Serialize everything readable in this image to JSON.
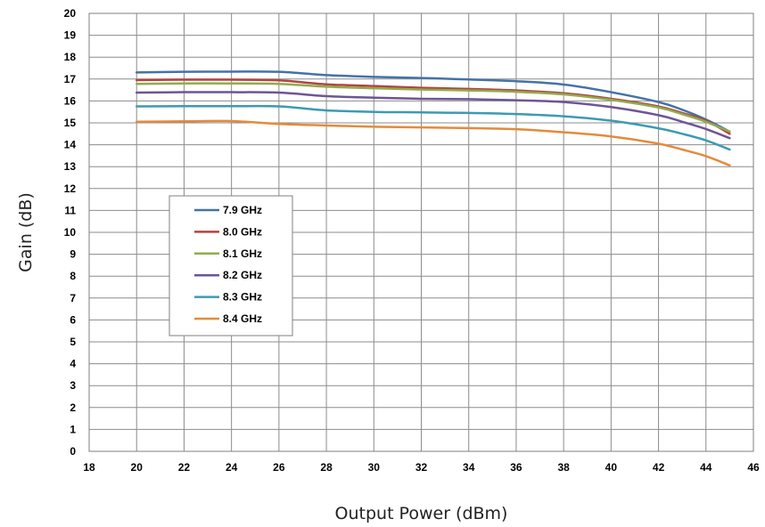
{
  "chart_data": {
    "type": "line",
    "title": "",
    "xlabel": "Output Power (dBm)",
    "ylabel": "Gain (dB)",
    "xlim": [
      18,
      46
    ],
    "ylim": [
      0,
      20
    ],
    "x_ticks": [
      18,
      20,
      22,
      24,
      26,
      28,
      30,
      32,
      34,
      36,
      38,
      40,
      42,
      44,
      46
    ],
    "y_ticks": [
      0,
      1,
      2,
      3,
      4,
      5,
      6,
      7,
      8,
      9,
      10,
      11,
      12,
      13,
      14,
      15,
      16,
      17,
      18,
      19,
      20
    ],
    "grid": true,
    "legend_position": "left-center",
    "x": [
      20,
      22,
      24,
      26,
      28,
      30,
      32,
      34,
      36,
      38,
      40,
      42,
      43,
      44,
      45
    ],
    "series": [
      {
        "name": "7.9 GHz",
        "color": "#4472a8",
        "values": [
          17.3,
          17.33,
          17.34,
          17.33,
          17.18,
          17.1,
          17.05,
          16.98,
          16.9,
          16.75,
          16.4,
          15.95,
          15.6,
          15.15,
          14.6
        ]
      },
      {
        "name": "8.0 GHz",
        "color": "#b4433f",
        "values": [
          16.95,
          16.97,
          16.97,
          16.94,
          16.76,
          16.68,
          16.6,
          16.55,
          16.48,
          16.35,
          16.1,
          15.75,
          15.45,
          15.1,
          14.5
        ]
      },
      {
        "name": "8.1 GHz",
        "color": "#8fac4c",
        "values": [
          16.78,
          16.8,
          16.8,
          16.78,
          16.65,
          16.58,
          16.52,
          16.48,
          16.42,
          16.3,
          16.05,
          15.7,
          15.4,
          15.05,
          14.6
        ]
      },
      {
        "name": "8.2 GHz",
        "color": "#6d5594",
        "values": [
          16.38,
          16.4,
          16.4,
          16.38,
          16.22,
          16.15,
          16.1,
          16.08,
          16.03,
          15.95,
          15.72,
          15.35,
          15.05,
          14.72,
          14.3
        ]
      },
      {
        "name": "8.3 GHz",
        "color": "#3c9ab3",
        "values": [
          15.75,
          15.76,
          15.76,
          15.75,
          15.57,
          15.5,
          15.48,
          15.45,
          15.4,
          15.3,
          15.1,
          14.75,
          14.5,
          14.2,
          13.78
        ]
      },
      {
        "name": "8.4 GHz",
        "color": "#e58a3b",
        "values": [
          15.05,
          15.07,
          15.08,
          14.95,
          14.88,
          14.82,
          14.79,
          14.76,
          14.71,
          14.57,
          14.38,
          14.05,
          13.78,
          13.48,
          13.06
        ]
      }
    ]
  }
}
